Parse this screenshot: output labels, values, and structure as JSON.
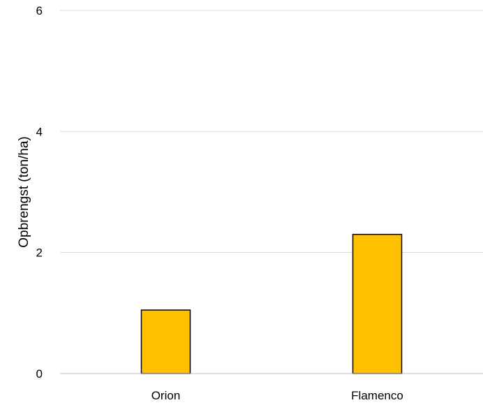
{
  "chart_data": {
    "type": "bar",
    "categories": [
      "Orion",
      "Flamenco"
    ],
    "values": [
      1.05,
      2.3
    ],
    "title": "",
    "xlabel": "",
    "ylabel": "Opbrengst (ton/ha)",
    "ylim": [
      0,
      6
    ],
    "yticks": [
      "0",
      "2",
      "4",
      "6"
    ],
    "grid": true,
    "legend": "none",
    "colors": {
      "bar_fill": "#FFC000",
      "bar_stroke": "#000000",
      "grid": "#D9D9D9",
      "axis": "#BFBFBF"
    }
  }
}
